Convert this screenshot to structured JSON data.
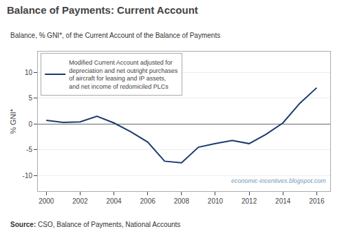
{
  "chart_data": {
    "type": "line",
    "title": "Balance of Payments: Current Account",
    "subtitle": "Balance, % GNI*, of the Current Account of the Balance of Payments",
    "ylabel": "% GNI*",
    "annotations": [
      "Source: CSO, Balance of Payments, National Accounts",
      "economic-incentives.blogspot.com"
    ],
    "x": [
      2000,
      2001,
      2002,
      2003,
      2004,
      2005,
      2006,
      2007,
      2008,
      2009,
      2010,
      2011,
      2012,
      2013,
      2014,
      2015,
      2016
    ],
    "series": [
      {
        "name": "Modified Current Account adjusted for\ndepreciation and net outright purchases\nof aircraft for leasing and IP assets,\nand net income of redomiciled PLCs",
        "color": "#1a3a6b",
        "values": [
          0.7,
          0.3,
          0.4,
          1.5,
          0.2,
          -1.5,
          -3.5,
          -7.2,
          -7.5,
          -4.5,
          -3.8,
          -3.2,
          -3.8,
          -2.0,
          0.2,
          4.0,
          7.0
        ]
      }
    ],
    "xlim": [
      1999.5,
      2016.8
    ],
    "ylim": [
      -13,
      14
    ],
    "xticks": [
      2000,
      2002,
      2004,
      2006,
      2008,
      2010,
      2012,
      2014,
      2016
    ],
    "yticks": [
      -10,
      -5,
      0,
      5,
      10
    ],
    "grid": true,
    "legend": "upper left"
  }
}
